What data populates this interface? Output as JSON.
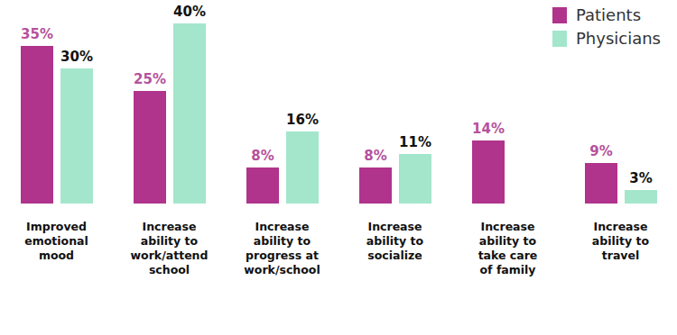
{
  "chart_data": {
    "type": "bar",
    "categories": [
      "Improved emotional mood",
      "Increase ability to work/attend school",
      "Increase ability to progress at work/school",
      "Increase ability to socialize",
      "Increase ability to take care of family",
      "Increase ability to travel"
    ],
    "series": [
      {
        "name": "Patients",
        "color": "#b0338c",
        "values": [
          35,
          25,
          8,
          8,
          14,
          9
        ],
        "value_labels": [
          "35%",
          "25%",
          "8%",
          "8%",
          "14%",
          "9%"
        ]
      },
      {
        "name": "Physicians",
        "color": "#a3e6cc",
        "values": [
          30,
          40,
          16,
          11,
          null,
          3
        ],
        "value_labels": [
          "30%",
          "40%",
          "16%",
          "11%",
          null,
          "3%"
        ]
      }
    ],
    "ylim": [
      0,
      40
    ],
    "yticks": [
      0,
      10,
      20,
      30,
      40
    ],
    "grid": false,
    "legend": "upper right",
    "data_labels": true,
    "tick_labels": "x"
  }
}
